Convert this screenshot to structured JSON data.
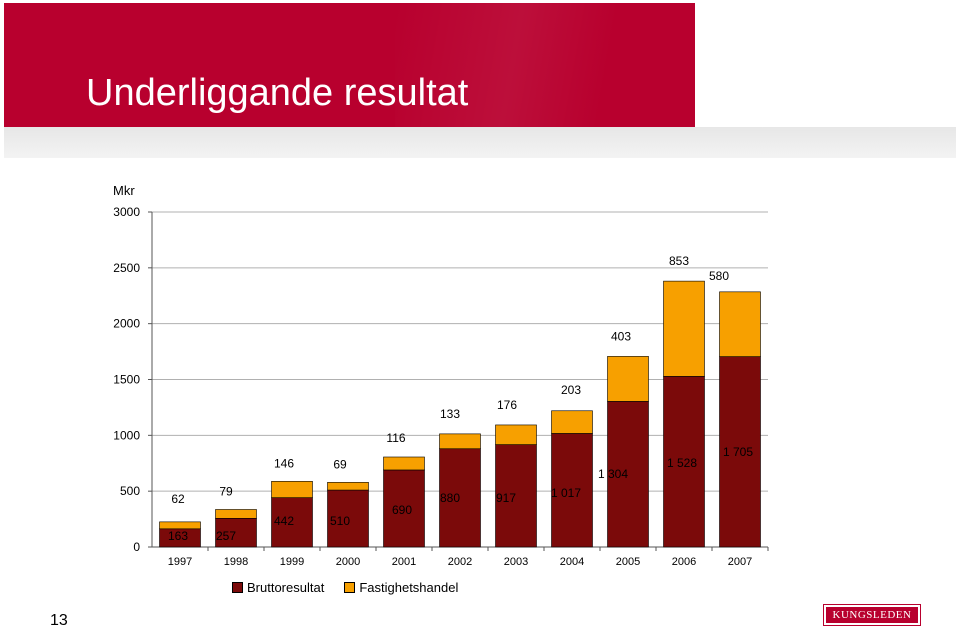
{
  "slide": {
    "title": "Underliggande resultat",
    "page_number": "13",
    "logo_text": "KUNGSLEDEN",
    "brand_color": "#b8002e"
  },
  "chart_data": {
    "type": "bar",
    "stacked": true,
    "unit_label": "Mkr",
    "categories": [
      "1997",
      "1998",
      "1999",
      "2000",
      "2001",
      "2002",
      "2003",
      "2004",
      "2005",
      "2006",
      "2007"
    ],
    "series": [
      {
        "name": "Bruttoresultat",
        "color": "#7b0a0a",
        "values": [
          163,
          257,
          442,
          510,
          690,
          880,
          917,
          1017,
          1304,
          1528,
          1705
        ],
        "labels": [
          "163",
          "257",
          "442",
          "510",
          "690",
          "880",
          "917",
          "1 017",
          "1 304",
          "1 528",
          "1 705"
        ]
      },
      {
        "name": "Fastighetshandel",
        "color": "#f7a000",
        "values": [
          62,
          79,
          146,
          69,
          116,
          133,
          176,
          203,
          403,
          853,
          580
        ],
        "labels": [
          "62",
          "79",
          "146",
          "69",
          "116",
          "133",
          "176",
          "203",
          "403",
          "853",
          "580"
        ]
      }
    ],
    "ylim": [
      0,
      3000
    ],
    "yticks": [
      "0",
      "500",
      "1000",
      "1500",
      "2000",
      "2500",
      "3000"
    ],
    "ytick_values": [
      0,
      500,
      1000,
      1500,
      2000,
      2500,
      3000
    ],
    "grid": true,
    "legend_position": "bottom-left"
  }
}
